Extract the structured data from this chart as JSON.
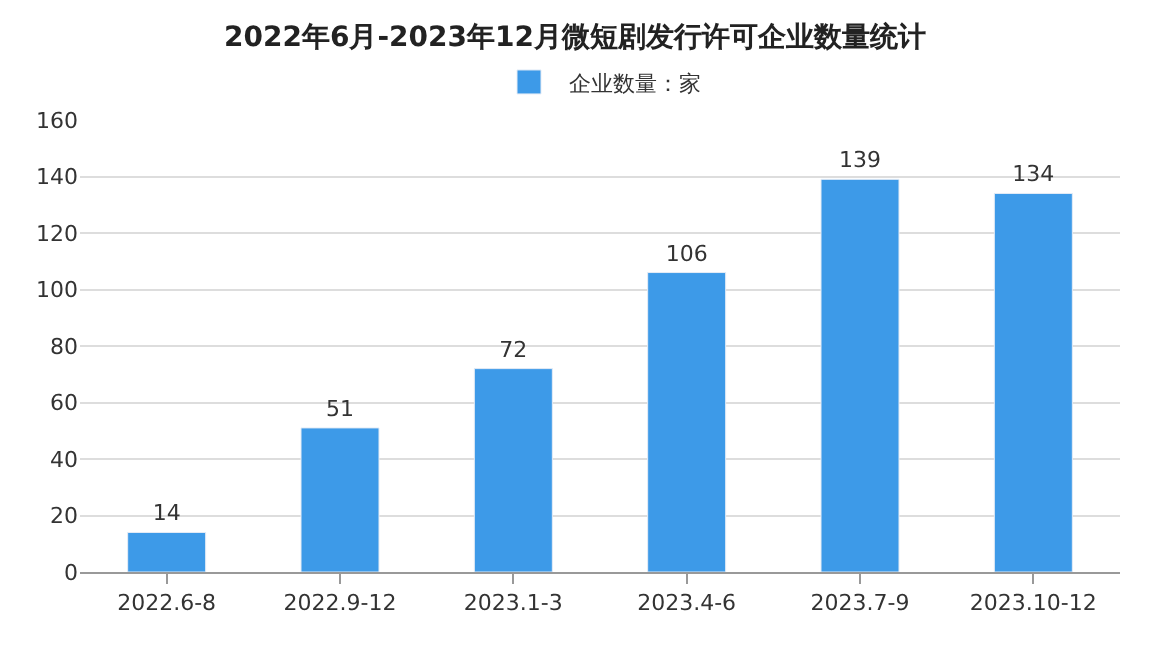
{
  "chart_data": {
    "type": "bar",
    "title": "2022年6月-2023年12月微短剧发行许可企业数量统计",
    "categories": [
      "2022.6-8",
      "2022.9-12",
      "2023.1-3",
      "2023.4-6",
      "2023.7-9",
      "2023.10-12"
    ],
    "series": [
      {
        "name": "企业数量：家",
        "color": "#3d9ae8",
        "values": [
          14,
          51,
          72,
          106,
          139,
          134
        ]
      }
    ],
    "ylim": [
      0,
      160
    ],
    "yticks": [
      0,
      20,
      40,
      60,
      80,
      100,
      120,
      140,
      160
    ],
    "grid": "y",
    "legend": "top",
    "data_labels": true
  }
}
